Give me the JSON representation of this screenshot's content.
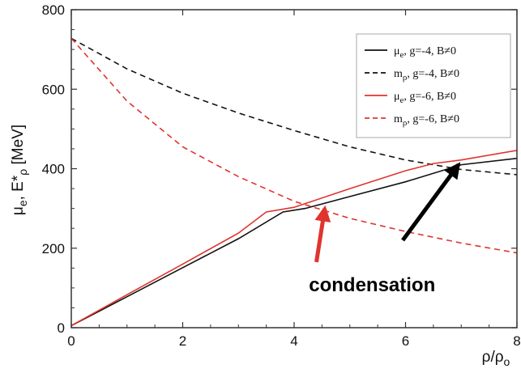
{
  "chart_data": {
    "type": "line",
    "xlabel": "ρ/ρ",
    "xlabel_sub": "o",
    "ylabel_parts": [
      "μ",
      "e",
      ", E*",
      "ρ",
      "  [MeV]"
    ],
    "xlim": [
      0,
      8
    ],
    "ylim": [
      0,
      800
    ],
    "xticks": [
      0,
      2,
      4,
      6,
      8
    ],
    "yticks": [
      0,
      200,
      400,
      600,
      800
    ],
    "grid": false,
    "legend_position": "top-right",
    "series": [
      {
        "name": "μe, g=-4, B≠0",
        "legend_parts": [
          "μ",
          "e",
          ", g=-4, B≠0"
        ],
        "color": "#111111",
        "dash": "solid",
        "x": [
          0,
          1,
          2,
          3,
          3.8,
          4.2,
          5,
          6,
          7,
          8
        ],
        "y": [
          5,
          78,
          151,
          224,
          291,
          300,
          330,
          367,
          410,
          426
        ]
      },
      {
        "name": "mρ, g=-4, B≠0",
        "legend_parts": [
          "m",
          "ρ",
          ", g=-4, B≠0"
        ],
        "color": "#111111",
        "dash": "dashed",
        "x": [
          0,
          1,
          2,
          3,
          4,
          5,
          6,
          7,
          8
        ],
        "y": [
          728,
          651,
          590,
          540,
          496,
          455,
          422,
          398,
          385
        ]
      },
      {
        "name": "μe, g=-6, B≠0",
        "legend_parts": [
          "μ",
          "e",
          ", g=-6, B≠0"
        ],
        "color": "#e0342f",
        "dash": "solid",
        "x": [
          0,
          1,
          2,
          3,
          3.5,
          4,
          5,
          6,
          6.5,
          7,
          8
        ],
        "y": [
          5,
          83,
          160,
          238,
          291,
          303,
          350,
          395,
          413,
          422,
          446
        ]
      },
      {
        "name": "mρ, g=-6, B≠0",
        "legend_parts": [
          "m",
          "ρ",
          ", g=-6, B≠0"
        ],
        "color": "#e0342f",
        "dash": "dashed",
        "x": [
          0,
          1,
          2,
          3,
          4,
          5,
          6,
          7,
          8
        ],
        "y": [
          728,
          570,
          455,
          380,
          318,
          275,
          242,
          213,
          188
        ]
      }
    ],
    "annotations": [
      {
        "text": "condensation",
        "x": 5.4,
        "y": 92
      }
    ],
    "arrows": [
      {
        "color": "#e0342f",
        "from": [
          4.4,
          165
        ],
        "to": [
          4.55,
          300
        ]
      },
      {
        "color": "#000000",
        "from": [
          5.95,
          220
        ],
        "to": [
          6.95,
          410
        ]
      }
    ]
  }
}
